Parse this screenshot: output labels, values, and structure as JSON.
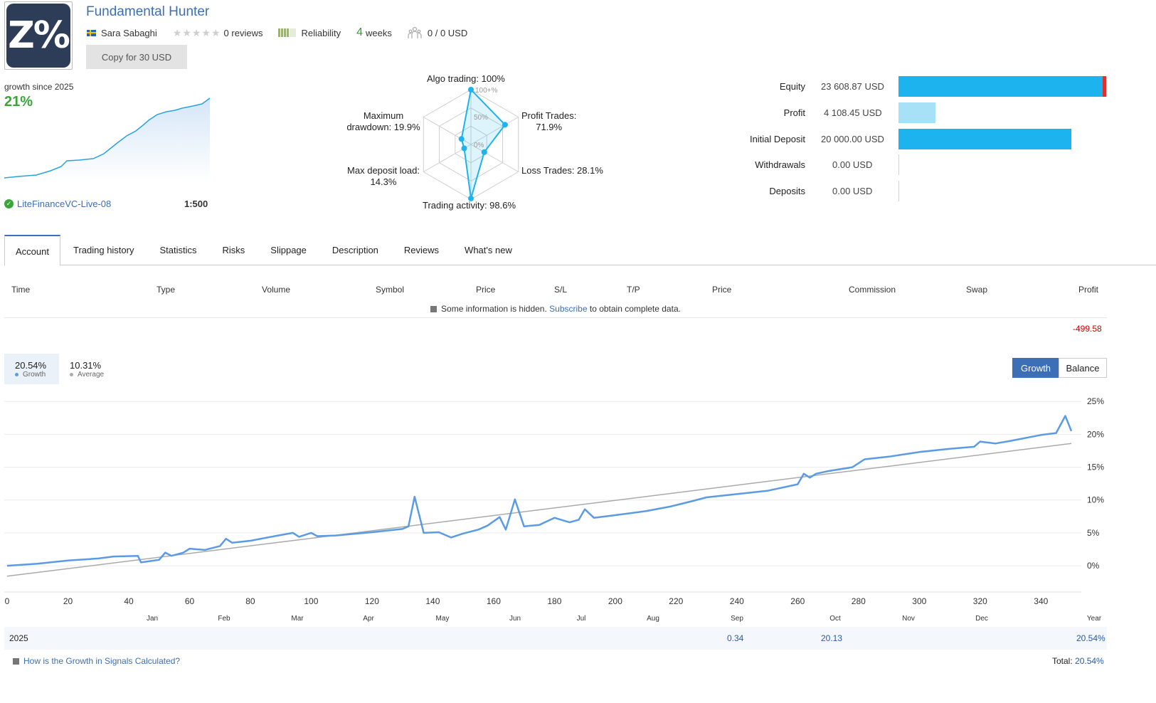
{
  "header": {
    "logo_text": "Z%",
    "title": "Fundamental Hunter",
    "author": "Sara Sabaghi",
    "reviews": "0 reviews",
    "reliability": "Reliability",
    "weeks_num": "4",
    "weeks_label": "weeks",
    "subscribers": "0 / 0 USD",
    "copy_button": "Copy for 30 USD"
  },
  "mini": {
    "growth_label": "growth since 2025",
    "growth_value": "21%",
    "server": "LiteFinanceVC-Live-08",
    "leverage": "1:500"
  },
  "radar": {
    "algo": "Algo trading: 100%",
    "profit_trades_1": "Profit Trades:",
    "profit_trades_2": "71.9%",
    "loss_trades": "Loss Trades: 28.1%",
    "activity": "Trading activity: 98.6%",
    "deposit_load_1": "Max deposit load:",
    "deposit_load_2": "14.3%",
    "drawdown_1": "Maximum",
    "drawdown_2": "drawdown: 19.9%",
    "scale_100": "100+%",
    "scale_50": "50%",
    "scale_0": "0%"
  },
  "radar_data": {
    "algo": 100,
    "profit": 71.9,
    "loss": 28.1,
    "activity": 98.6,
    "deposit_load": 14.3,
    "drawdown": 19.9
  },
  "balance": {
    "equity": {
      "label": "Equity",
      "value": "23 608.87 USD",
      "ratio": 1.0
    },
    "profit": {
      "label": "Profit",
      "value": "4 108.45 USD",
      "ratio": 0.174
    },
    "initial": {
      "label": "Initial Deposit",
      "value": "20 000.00 USD",
      "ratio": 0.847
    },
    "withdrawals": {
      "label": "Withdrawals",
      "value": "0.00 USD",
      "ratio": 0
    },
    "deposits": {
      "label": "Deposits",
      "value": "0.00 USD",
      "ratio": 0
    },
    "colors": {
      "equity": "#1db3ee",
      "profit": "#a7e1f7",
      "marker": "#e03030"
    }
  },
  "tabs": [
    "Account",
    "Trading history",
    "Statistics",
    "Risks",
    "Slippage",
    "Description",
    "Reviews",
    "What's new"
  ],
  "table": {
    "headers": [
      "Time",
      "Type",
      "Volume",
      "Symbol",
      "Price",
      "S/L",
      "T/P",
      "Price",
      "Commission",
      "Swap",
      "Profit"
    ],
    "hidden_text": "Some information is hidden.",
    "subscribe": "Subscribe",
    "hidden_suffix": "to obtain complete data.",
    "profit": "-499.58"
  },
  "chart_legend": {
    "growth_value": "20.54%",
    "growth_label": "Growth",
    "average_value": "10.31%",
    "average_label": "Average",
    "btn_growth": "Growth",
    "btn_balance": "Balance"
  },
  "chart_data": {
    "type": "line",
    "xlabel": "",
    "ylabel": "",
    "xlim": [
      0,
      350
    ],
    "ylim": [
      -4,
      26
    ],
    "x_ticks": [
      0,
      20,
      40,
      60,
      80,
      100,
      120,
      140,
      160,
      180,
      200,
      220,
      240,
      260,
      280,
      300,
      320,
      340
    ],
    "y_ticks": [
      0,
      5,
      10,
      15,
      20,
      25
    ],
    "y_tick_labels": [
      "0%",
      "5%",
      "10%",
      "15%",
      "20%",
      "25%"
    ],
    "months": [
      "Jan",
      "Feb",
      "Mar",
      "Apr",
      "May",
      "Jun",
      "Jul",
      "Aug",
      "Sep",
      "Oct",
      "Nov",
      "Dec",
      "Year"
    ],
    "series": [
      {
        "name": "Growth",
        "color": "#5b9be6",
        "points": [
          [
            0,
            0
          ],
          [
            10,
            0.3
          ],
          [
            20,
            0.8
          ],
          [
            30,
            1.1
          ],
          [
            35,
            1.4
          ],
          [
            43,
            1.5
          ],
          [
            44,
            0.5
          ],
          [
            50,
            0.9
          ],
          [
            52,
            2
          ],
          [
            54,
            1.5
          ],
          [
            58,
            2
          ],
          [
            60,
            2.6
          ],
          [
            65,
            2.4
          ],
          [
            70,
            3
          ],
          [
            72,
            4.1
          ],
          [
            74,
            3.5
          ],
          [
            80,
            3.8
          ],
          [
            88,
            4.5
          ],
          [
            94,
            5
          ],
          [
            96,
            4.4
          ],
          [
            100,
            5
          ],
          [
            102,
            4.5
          ],
          [
            108,
            4.6
          ],
          [
            120,
            5.1
          ],
          [
            130,
            5.6
          ],
          [
            132,
            6
          ],
          [
            134,
            10.5
          ],
          [
            137,
            5
          ],
          [
            142,
            5.1
          ],
          [
            146,
            4.3
          ],
          [
            150,
            4.9
          ],
          [
            155,
            5.5
          ],
          [
            158,
            6.1
          ],
          [
            162,
            7.4
          ],
          [
            164,
            5.5
          ],
          [
            167,
            10.1
          ],
          [
            170,
            6
          ],
          [
            175,
            6.2
          ],
          [
            180,
            7.3
          ],
          [
            185,
            6.6
          ],
          [
            188,
            7
          ],
          [
            190,
            8.6
          ],
          [
            193,
            7.3
          ],
          [
            200,
            7.7
          ],
          [
            210,
            8.3
          ],
          [
            218,
            9
          ],
          [
            225,
            9.8
          ],
          [
            230,
            10.4
          ],
          [
            240,
            10.9
          ],
          [
            250,
            11.4
          ],
          [
            260,
            12.4
          ],
          [
            262,
            14
          ],
          [
            264,
            13.4
          ],
          [
            266,
            14
          ],
          [
            270,
            14.4
          ],
          [
            278,
            15
          ],
          [
            282,
            16.2
          ],
          [
            286,
            16.4
          ],
          [
            290,
            16.6
          ],
          [
            300,
            17.3
          ],
          [
            310,
            17.8
          ],
          [
            318,
            18.1
          ],
          [
            320,
            18.9
          ],
          [
            325,
            18.6
          ],
          [
            330,
            19
          ],
          [
            340,
            19.9
          ],
          [
            345,
            20.2
          ],
          [
            348,
            22.8
          ],
          [
            350,
            20.5
          ]
        ]
      },
      {
        "name": "Average",
        "color": "#aaaaaa",
        "points": [
          [
            0,
            -1.6
          ],
          [
            350,
            18.6
          ]
        ]
      }
    ]
  },
  "year_row": {
    "year": "2025",
    "values": [
      {
        "month": "Sep",
        "value": "0.34"
      },
      {
        "month": "Oct",
        "value": "20.13"
      },
      {
        "month": "Year",
        "value": "20.54%"
      }
    ]
  },
  "footer": {
    "how_link": "How is the Growth in Signals Calculated?",
    "total_label": "Total:",
    "total_value": "20.54%"
  }
}
